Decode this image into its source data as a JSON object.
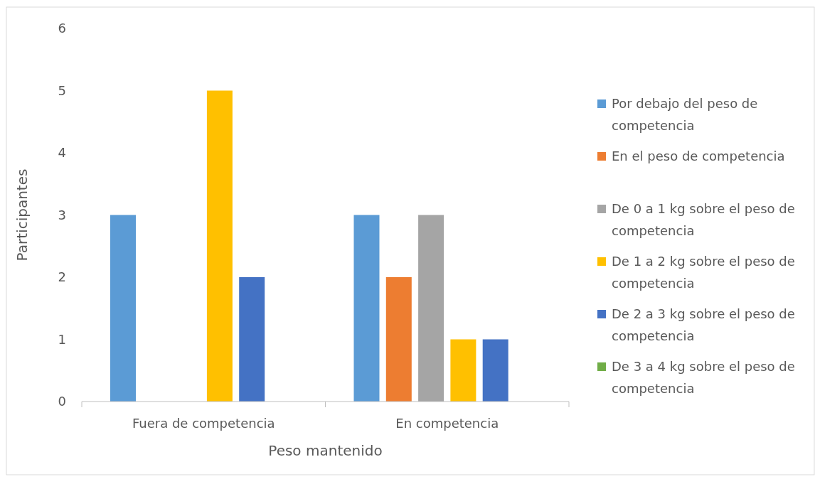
{
  "chart_data": {
    "type": "bar",
    "xlabel": "Peso mantenido",
    "ylabel": "Participantes",
    "categories": [
      "Fuera de competencia",
      "En competencia"
    ],
    "series": [
      {
        "name": "Por debajo del peso de competencia",
        "color": "#5b9bd5",
        "values": [
          3,
          3
        ]
      },
      {
        "name": "En el peso de competencia",
        "color": "#ed7d31",
        "values": [
          0,
          2
        ]
      },
      {
        "name": "De 0 a 1 kg sobre el peso de competencia",
        "color": "#a5a5a5",
        "values": [
          0,
          3
        ]
      },
      {
        "name": "De 1 a 2 kg sobre el peso de competencia",
        "color": "#ffc000",
        "values": [
          5,
          1
        ]
      },
      {
        "name": "De 2 a 3 kg sobre el peso de competencia",
        "color": "#4472c4",
        "values": [
          2,
          1
        ]
      },
      {
        "name": "De 3 a 4 kg sobre el peso de competencia",
        "color": "#70ad47",
        "values": [
          0,
          0
        ]
      }
    ],
    "ylim": [
      0,
      6
    ],
    "yticks": [
      0,
      1,
      2,
      3,
      4,
      5,
      6
    ],
    "grid": false,
    "legend": "right"
  }
}
